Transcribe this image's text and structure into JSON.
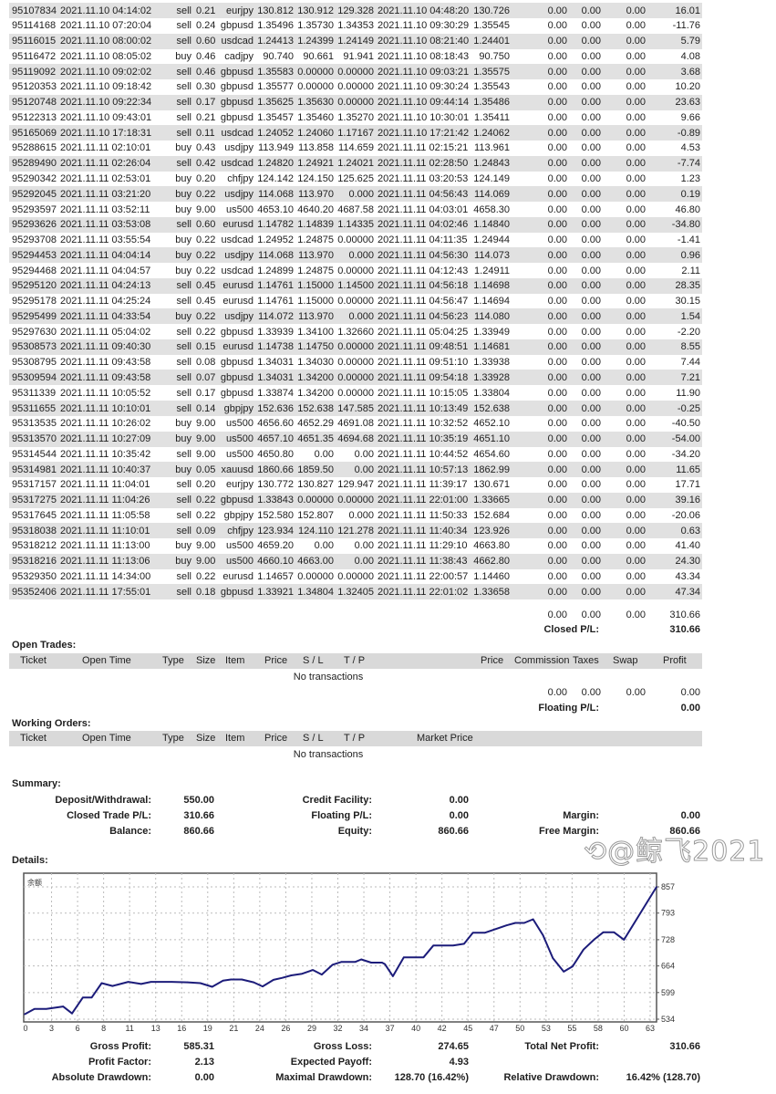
{
  "closed_trades": {
    "rows": [
      [
        "95107834",
        "2021.11.10 04:14:02",
        "sell",
        "0.21",
        "eurjpy",
        "130.812",
        "130.912",
        "129.328",
        "2021.11.10 04:48:20",
        "130.726",
        "0.00",
        "0.00",
        "0.00",
        "16.01"
      ],
      [
        "95114168",
        "2021.11.10 07:20:04",
        "sell",
        "0.24",
        "gbpusd",
        "1.35496",
        "1.35730",
        "1.34353",
        "2021.11.10 09:30:29",
        "1.35545",
        "0.00",
        "0.00",
        "0.00",
        "-11.76"
      ],
      [
        "95116015",
        "2021.11.10 08:00:02",
        "sell",
        "0.60",
        "usdcad",
        "1.24413",
        "1.24399",
        "1.24149",
        "2021.11.10 08:21:40",
        "1.24401",
        "0.00",
        "0.00",
        "0.00",
        "5.79"
      ],
      [
        "95116472",
        "2021.11.10 08:05:02",
        "buy",
        "0.46",
        "cadjpy",
        "90.740",
        "90.661",
        "91.941",
        "2021.11.10 08:18:43",
        "90.750",
        "0.00",
        "0.00",
        "0.00",
        "4.08"
      ],
      [
        "95119092",
        "2021.11.10 09:02:02",
        "sell",
        "0.46",
        "gbpusd",
        "1.35583",
        "0.00000",
        "0.00000",
        "2021.11.10 09:03:21",
        "1.35575",
        "0.00",
        "0.00",
        "0.00",
        "3.68"
      ],
      [
        "95120353",
        "2021.11.10 09:18:42",
        "sell",
        "0.30",
        "gbpusd",
        "1.35577",
        "0.00000",
        "0.00000",
        "2021.11.10 09:30:24",
        "1.35543",
        "0.00",
        "0.00",
        "0.00",
        "10.20"
      ],
      [
        "95120748",
        "2021.11.10 09:22:34",
        "sell",
        "0.17",
        "gbpusd",
        "1.35625",
        "1.35630",
        "0.00000",
        "2021.11.10 09:44:14",
        "1.35486",
        "0.00",
        "0.00",
        "0.00",
        "23.63"
      ],
      [
        "95122313",
        "2021.11.10 09:43:01",
        "sell",
        "0.21",
        "gbpusd",
        "1.35457",
        "1.35460",
        "1.35270",
        "2021.11.10 10:30:01",
        "1.35411",
        "0.00",
        "0.00",
        "0.00",
        "9.66"
      ],
      [
        "95165069",
        "2021.11.10 17:18:31",
        "sell",
        "0.11",
        "usdcad",
        "1.24052",
        "1.24060",
        "1.17167",
        "2021.11.10 17:21:42",
        "1.24062",
        "0.00",
        "0.00",
        "0.00",
        "-0.89"
      ],
      [
        "95288615",
        "2021.11.11 02:10:01",
        "buy",
        "0.43",
        "usdjpy",
        "113.949",
        "113.858",
        "114.659",
        "2021.11.11 02:15:21",
        "113.961",
        "0.00",
        "0.00",
        "0.00",
        "4.53"
      ],
      [
        "95289490",
        "2021.11.11 02:26:04",
        "sell",
        "0.42",
        "usdcad",
        "1.24820",
        "1.24921",
        "1.24021",
        "2021.11.11 02:28:50",
        "1.24843",
        "0.00",
        "0.00",
        "0.00",
        "-7.74"
      ],
      [
        "95290342",
        "2021.11.11 02:53:01",
        "buy",
        "0.20",
        "chfjpy",
        "124.142",
        "124.150",
        "125.625",
        "2021.11.11 03:20:53",
        "124.149",
        "0.00",
        "0.00",
        "0.00",
        "1.23"
      ],
      [
        "95292045",
        "2021.11.11 03:21:20",
        "buy",
        "0.22",
        "usdjpy",
        "114.068",
        "113.970",
        "0.000",
        "2021.11.11 04:56:43",
        "114.069",
        "0.00",
        "0.00",
        "0.00",
        "0.19"
      ],
      [
        "95293597",
        "2021.11.11 03:52:11",
        "buy",
        "9.00",
        "us500",
        "4653.10",
        "4640.20",
        "4687.58",
        "2021.11.11 04:03:01",
        "4658.30",
        "0.00",
        "0.00",
        "0.00",
        "46.80"
      ],
      [
        "95293626",
        "2021.11.11 03:53:08",
        "sell",
        "0.60",
        "eurusd",
        "1.14782",
        "1.14839",
        "1.14335",
        "2021.11.11 04:02:46",
        "1.14840",
        "0.00",
        "0.00",
        "0.00",
        "-34.80"
      ],
      [
        "95293708",
        "2021.11.11 03:55:54",
        "buy",
        "0.22",
        "usdcad",
        "1.24952",
        "1.24875",
        "0.00000",
        "2021.11.11 04:11:35",
        "1.24944",
        "0.00",
        "0.00",
        "0.00",
        "-1.41"
      ],
      [
        "95294453",
        "2021.11.11 04:04:14",
        "buy",
        "0.22",
        "usdjpy",
        "114.068",
        "113.970",
        "0.000",
        "2021.11.11 04:56:30",
        "114.073",
        "0.00",
        "0.00",
        "0.00",
        "0.96"
      ],
      [
        "95294468",
        "2021.11.11 04:04:57",
        "buy",
        "0.22",
        "usdcad",
        "1.24899",
        "1.24875",
        "0.00000",
        "2021.11.11 04:12:43",
        "1.24911",
        "0.00",
        "0.00",
        "0.00",
        "2.11"
      ],
      [
        "95295120",
        "2021.11.11 04:24:13",
        "sell",
        "0.45",
        "eurusd",
        "1.14761",
        "1.15000",
        "1.14500",
        "2021.11.11 04:56:18",
        "1.14698",
        "0.00",
        "0.00",
        "0.00",
        "28.35"
      ],
      [
        "95295178",
        "2021.11.11 04:25:24",
        "sell",
        "0.45",
        "eurusd",
        "1.14761",
        "1.15000",
        "0.00000",
        "2021.11.11 04:56:47",
        "1.14694",
        "0.00",
        "0.00",
        "0.00",
        "30.15"
      ],
      [
        "95295499",
        "2021.11.11 04:33:54",
        "buy",
        "0.22",
        "usdjpy",
        "114.072",
        "113.970",
        "0.000",
        "2021.11.11 04:56:23",
        "114.080",
        "0.00",
        "0.00",
        "0.00",
        "1.54"
      ],
      [
        "95297630",
        "2021.11.11 05:04:02",
        "sell",
        "0.22",
        "gbpusd",
        "1.33939",
        "1.34100",
        "1.32660",
        "2021.11.11 05:04:25",
        "1.33949",
        "0.00",
        "0.00",
        "0.00",
        "-2.20"
      ],
      [
        "95308573",
        "2021.11.11 09:40:30",
        "sell",
        "0.15",
        "eurusd",
        "1.14738",
        "1.14750",
        "0.00000",
        "2021.11.11 09:48:51",
        "1.14681",
        "0.00",
        "0.00",
        "0.00",
        "8.55"
      ],
      [
        "95308795",
        "2021.11.11 09:43:58",
        "sell",
        "0.08",
        "gbpusd",
        "1.34031",
        "1.34030",
        "0.00000",
        "2021.11.11 09:51:10",
        "1.33938",
        "0.00",
        "0.00",
        "0.00",
        "7.44"
      ],
      [
        "95309594",
        "2021.11.11 09:43:58",
        "sell",
        "0.07",
        "gbpusd",
        "1.34031",
        "1.34200",
        "0.00000",
        "2021.11.11 09:54:18",
        "1.33928",
        "0.00",
        "0.00",
        "0.00",
        "7.21"
      ],
      [
        "95311339",
        "2021.11.11 10:05:52",
        "sell",
        "0.17",
        "gbpusd",
        "1.33874",
        "1.34200",
        "0.00000",
        "2021.11.11 10:15:05",
        "1.33804",
        "0.00",
        "0.00",
        "0.00",
        "11.90"
      ],
      [
        "95311655",
        "2021.11.11 10:10:01",
        "sell",
        "0.14",
        "gbpjpy",
        "152.636",
        "152.638",
        "147.585",
        "2021.11.11 10:13:49",
        "152.638",
        "0.00",
        "0.00",
        "0.00",
        "-0.25"
      ],
      [
        "95313535",
        "2021.11.11 10:26:02",
        "buy",
        "9.00",
        "us500",
        "4656.60",
        "4652.29",
        "4691.08",
        "2021.11.11 10:32:52",
        "4652.10",
        "0.00",
        "0.00",
        "0.00",
        "-40.50"
      ],
      [
        "95313570",
        "2021.11.11 10:27:09",
        "buy",
        "9.00",
        "us500",
        "4657.10",
        "4651.35",
        "4694.68",
        "2021.11.11 10:35:19",
        "4651.10",
        "0.00",
        "0.00",
        "0.00",
        "-54.00"
      ],
      [
        "95314544",
        "2021.11.11 10:35:42",
        "sell",
        "9.00",
        "us500",
        "4650.80",
        "0.00",
        "0.00",
        "2021.11.11 10:44:52",
        "4654.60",
        "0.00",
        "0.00",
        "0.00",
        "-34.20"
      ],
      [
        "95314981",
        "2021.11.11 10:40:37",
        "buy",
        "0.05",
        "xauusd",
        "1860.66",
        "1859.50",
        "0.00",
        "2021.11.11 10:57:13",
        "1862.99",
        "0.00",
        "0.00",
        "0.00",
        "11.65"
      ],
      [
        "95317157",
        "2021.11.11 11:04:01",
        "sell",
        "0.20",
        "eurjpy",
        "130.772",
        "130.827",
        "129.947",
        "2021.11.11 11:39:17",
        "130.671",
        "0.00",
        "0.00",
        "0.00",
        "17.71"
      ],
      [
        "95317275",
        "2021.11.11 11:04:26",
        "sell",
        "0.22",
        "gbpusd",
        "1.33843",
        "0.00000",
        "0.00000",
        "2021.11.11 22:01:00",
        "1.33665",
        "0.00",
        "0.00",
        "0.00",
        "39.16"
      ],
      [
        "95317645",
        "2021.11.11 11:05:58",
        "sell",
        "0.22",
        "gbpjpy",
        "152.580",
        "152.807",
        "0.000",
        "2021.11.11 11:50:33",
        "152.684",
        "0.00",
        "0.00",
        "0.00",
        "-20.06"
      ],
      [
        "95318038",
        "2021.11.11 11:10:01",
        "sell",
        "0.09",
        "chfjpy",
        "123.934",
        "124.110",
        "121.278",
        "2021.11.11 11:40:34",
        "123.926",
        "0.00",
        "0.00",
        "0.00",
        "0.63"
      ],
      [
        "95318212",
        "2021.11.11 11:13:00",
        "buy",
        "9.00",
        "us500",
        "4659.20",
        "0.00",
        "0.00",
        "2021.11.11 11:29:10",
        "4663.80",
        "0.00",
        "0.00",
        "0.00",
        "41.40"
      ],
      [
        "95318216",
        "2021.11.11 11:13:06",
        "buy",
        "9.00",
        "us500",
        "4660.10",
        "4663.00",
        "0.00",
        "2021.11.11 11:38:43",
        "4662.80",
        "0.00",
        "0.00",
        "0.00",
        "24.30"
      ],
      [
        "95329350",
        "2021.11.11 14:34:00",
        "sell",
        "0.22",
        "eurusd",
        "1.14657",
        "0.00000",
        "0.00000",
        "2021.11.11 22:00:57",
        "1.14460",
        "0.00",
        "0.00",
        "0.00",
        "43.34"
      ],
      [
        "95352406",
        "2021.11.11 17:55:01",
        "sell",
        "0.18",
        "gbpusd",
        "1.33921",
        "1.34804",
        "1.32405",
        "2021.11.11 22:01:02",
        "1.33658",
        "0.00",
        "0.00",
        "0.00",
        "47.34"
      ]
    ],
    "totals": {
      "commission": "0.00",
      "taxes": "0.00",
      "swap": "0.00",
      "profit": "310.66"
    },
    "closed_pl_label": "Closed P/L:",
    "closed_pl_value": "310.66"
  },
  "open_trades": {
    "title": "Open Trades:",
    "headers": [
      "Ticket",
      "Open Time",
      "Type",
      "Size",
      "Item",
      "Price",
      "S / L",
      "T / P",
      "Price",
      "Commission",
      "Taxes",
      "Swap",
      "Profit"
    ],
    "empty": "No transactions",
    "totals": {
      "commission": "0.00",
      "taxes": "0.00",
      "swap": "0.00",
      "profit": "0.00"
    },
    "floating_pl_label": "Floating P/L:",
    "floating_pl_value": "0.00"
  },
  "working_orders": {
    "title": "Working Orders:",
    "headers": [
      "Ticket",
      "Open Time",
      "Type",
      "Size",
      "Item",
      "Price",
      "S / L",
      "T / P",
      "Market Price"
    ],
    "empty": "No transactions"
  },
  "summary": {
    "title": "Summary:",
    "deposit_label": "Deposit/Withdrawal:",
    "deposit": "550.00",
    "credit_label": "Credit Facility:",
    "credit": "0.00",
    "closed_label": "Closed Trade P/L:",
    "closed": "310.66",
    "floating_label": "Floating P/L:",
    "floating": "0.00",
    "margin_label": "Margin:",
    "margin": "0.00",
    "balance_label": "Balance:",
    "balance": "860.66",
    "equity_label": "Equity:",
    "equity": "860.66",
    "free_margin_label": "Free Margin:",
    "free_margin": "860.66"
  },
  "details": {
    "title": "Details:",
    "gross_profit_label": "Gross Profit:",
    "gross_profit": "585.31",
    "gross_loss_label": "Gross Loss:",
    "gross_loss": "274.65",
    "net_profit_label": "Total Net Profit:",
    "net_profit": "310.66",
    "profit_factor_label": "Profit Factor:",
    "profit_factor": "2.13",
    "expected_payoff_label": "Expected Payoff:",
    "expected_payoff": "4.93",
    "abs_dd_label": "Absolute Drawdown:",
    "abs_dd": "0.00",
    "max_dd_label": "Maximal Drawdown:",
    "max_dd": "128.70 (16.42%)",
    "rel_dd_label": "Relative Drawdown:",
    "rel_dd": "16.42% (128.70)"
  },
  "chart_data": {
    "type": "line",
    "series_label": "余额",
    "x": [
      0,
      1,
      2.2,
      3.9,
      4.8,
      5.9,
      6.8,
      7.8,
      8.9,
      10.5,
      11.8,
      12.8,
      14.9,
      16.5,
      17.8,
      19,
      20.1,
      20.9,
      22,
      23.2,
      24.1,
      25.2,
      26.1,
      27,
      28.1,
      29.2,
      30.1,
      31.2,
      32.1,
      33.5,
      34.1,
      35.1,
      36.2,
      36.5,
      37.3,
      38.4,
      40.4,
      41.4,
      43.4,
      44.5,
      45.4,
      46.6,
      48.8,
      49.7,
      50.6,
      51.5,
      52.5,
      53.5,
      54.6,
      55.5,
      56.6,
      57.7,
      58.6,
      59.7,
      60.7,
      64
    ],
    "y": [
      546,
      559,
      559,
      565,
      548,
      587,
      587,
      622,
      615,
      625,
      620,
      625,
      625,
      624,
      622,
      613,
      628,
      631,
      631,
      624,
      614,
      630,
      635,
      641,
      645,
      654,
      643,
      667,
      674,
      674,
      680,
      672,
      672,
      668,
      639,
      685,
      685,
      714,
      714,
      718,
      745,
      745,
      763,
      769,
      769,
      778,
      739,
      683,
      650,
      663,
      704,
      729,
      746,
      746,
      728,
      857
    ],
    "xlim": [
      0,
      64
    ],
    "ylim": [
      534,
      857
    ],
    "x_ticks": [
      "0",
      "3",
      "6",
      "8",
      "11",
      "13",
      "16",
      "19",
      "21",
      "24",
      "26",
      "29",
      "32",
      "34",
      "37",
      "40",
      "42",
      "45",
      "47",
      "50",
      "53",
      "55",
      "58",
      "60",
      "63"
    ],
    "y_ticks": [
      "857",
      "793",
      "728",
      "664",
      "599",
      "534"
    ],
    "grid": true,
    "line_color": "#1c1c7a"
  },
  "watermark": "@鲸飞2021"
}
